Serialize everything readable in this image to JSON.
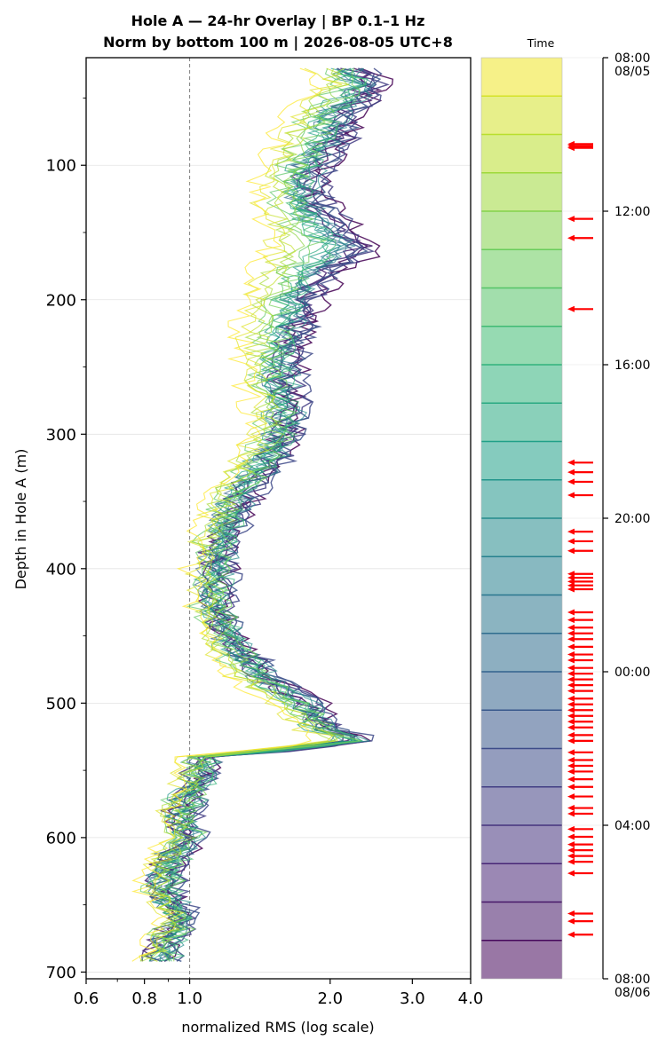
{
  "chart_data": {
    "type": "line",
    "title_line1": "Hole A — 24-hr Overlay  |  BP 0.1–1 Hz",
    "title_line2": "Norm by bottom 100 m  |  2026-08-05 UTC+8",
    "xlabel": "normalized RMS  (log scale)",
    "ylabel": "Depth in Hole A (m)",
    "x_scale": "log",
    "xlim": [
      0.6,
      4.0
    ],
    "ylim": [
      705,
      20
    ],
    "x_ticks": [
      0.6,
      0.8,
      1.0,
      2.0,
      3.0,
      4.0
    ],
    "x_tick_labels": [
      "0.6",
      "0.8",
      "1.0",
      "2.0",
      "3.0",
      "4.0"
    ],
    "y_ticks": [
      100,
      200,
      300,
      400,
      500,
      600,
      700
    ],
    "y_tick_labels": [
      "100",
      "200",
      "300",
      "400",
      "500",
      "600",
      "700"
    ],
    "grid": true,
    "reference_line_x": 1.0,
    "colormap": "viridis",
    "n_series": 24,
    "depth_knots": [
      30,
      40,
      60,
      80,
      100,
      110,
      130,
      150,
      160,
      180,
      200,
      230,
      260,
      280,
      300,
      320,
      340,
      360,
      380,
      400,
      430,
      460,
      480,
      500,
      520,
      527,
      540,
      560,
      580,
      600,
      620,
      640,
      660,
      680,
      695
    ],
    "profile_late": [
      2.35,
      2.6,
      2.25,
      2.2,
      1.95,
      1.9,
      1.98,
      2.3,
      2.55,
      2.05,
      1.9,
      1.75,
      1.65,
      1.72,
      1.65,
      1.55,
      1.38,
      1.28,
      1.2,
      1.18,
      1.15,
      1.3,
      1.5,
      1.85,
      2.05,
      2.45,
      1.1,
      1.05,
      0.98,
      1.02,
      0.92,
      0.9,
      0.98,
      0.9,
      0.88
    ],
    "profile_early": [
      1.85,
      1.95,
      1.65,
      1.55,
      1.5,
      1.45,
      1.38,
      1.4,
      1.42,
      1.35,
      1.3,
      1.3,
      1.35,
      1.38,
      1.4,
      1.28,
      1.18,
      1.12,
      1.05,
      1.05,
      1.08,
      1.15,
      1.25,
      1.5,
      1.75,
      2.1,
      1.0,
      0.98,
      0.92,
      0.95,
      0.86,
      0.84,
      0.92,
      0.86,
      0.84
    ],
    "colorbar": {
      "label": "Time",
      "tick_labels": [
        {
          "time": "08:00",
          "date": "08/05",
          "hour": 0
        },
        {
          "time": "12:00",
          "date": "",
          "hour": 4
        },
        {
          "time": "16:00",
          "date": "",
          "hour": 8
        },
        {
          "time": "20:00",
          "date": "",
          "hour": 12
        },
        {
          "time": "00:00",
          "date": "",
          "hour": 16
        },
        {
          "time": "04:00",
          "date": "",
          "hour": 20
        },
        {
          "time": "08:00",
          "date": "08/06",
          "hour": 24
        }
      ],
      "arrow_color": "#ff0000",
      "event_hours": [
        2.25,
        2.3,
        2.35,
        4.2,
        4.7,
        6.55,
        10.55,
        10.8,
        11.05,
        11.4,
        12.35,
        12.6,
        12.85,
        13.45,
        13.55,
        13.65,
        13.75,
        13.85,
        14.45,
        14.65,
        14.85,
        15.0,
        15.15,
        15.35,
        15.55,
        15.7,
        15.9,
        16.05,
        16.2,
        16.35,
        16.5,
        16.7,
        16.85,
        17.0,
        17.15,
        17.3,
        17.45,
        17.65,
        17.8,
        18.1,
        18.3,
        18.45,
        18.6,
        18.8,
        19.0,
        19.25,
        19.55,
        19.7,
        20.1,
        20.3,
        20.5,
        20.65,
        20.8,
        20.95,
        21.25,
        22.3,
        22.5,
        22.85
      ]
    }
  }
}
